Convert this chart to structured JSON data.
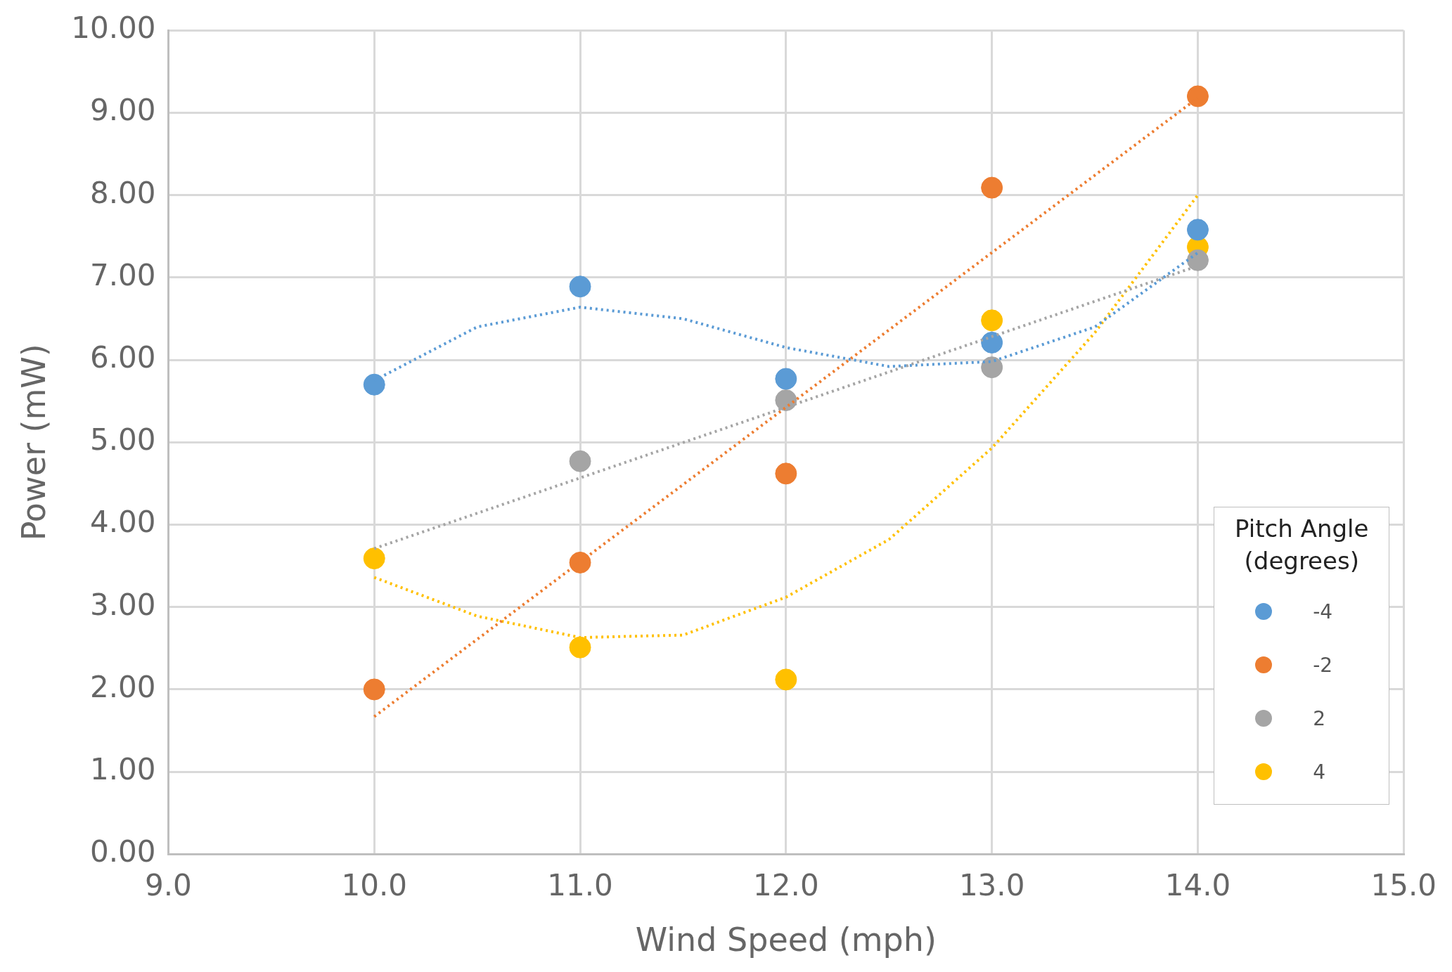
{
  "chart_data": {
    "type": "scatter",
    "xlabel": "Wind Speed (mph)",
    "ylabel": "Power (mW)",
    "legend_title": "Pitch Angle (degrees)",
    "legend": "bottom right",
    "grid": true,
    "x": [
      10,
      11,
      12,
      13,
      14
    ],
    "xlim": [
      9,
      15
    ],
    "xticks": [
      {
        "value": 9,
        "label": "9.0"
      },
      {
        "value": 10,
        "label": "10.0"
      },
      {
        "value": 11,
        "label": "11.0"
      },
      {
        "value": 12,
        "label": "12.0"
      },
      {
        "value": 13,
        "label": "13.0"
      },
      {
        "value": 14,
        "label": "14.0"
      },
      {
        "value": 15,
        "label": "15.0"
      }
    ],
    "ylim": [
      0,
      10
    ],
    "yticks": [
      {
        "value": 0,
        "label": "0.00"
      },
      {
        "value": 1,
        "label": "1.00"
      },
      {
        "value": 2,
        "label": "2.00"
      },
      {
        "value": 3,
        "label": "3.00"
      },
      {
        "value": 4,
        "label": "4.00"
      },
      {
        "value": 5,
        "label": "5.00"
      },
      {
        "value": 6,
        "label": "6.00"
      },
      {
        "value": 7,
        "label": "7.00"
      },
      {
        "value": 8,
        "label": "8.00"
      },
      {
        "value": 9,
        "label": "9.00"
      },
      {
        "value": 10,
        "label": "10.00"
      }
    ],
    "series": [
      {
        "type": "line",
        "color": "#5b9bd5",
        "line_style": "dotted",
        "marker": "none",
        "x": [
          10,
          10.5,
          11,
          11.5,
          12,
          12.5,
          13,
          13.5,
          14
        ],
        "values": [
          5.75,
          6.4,
          6.64,
          6.5,
          6.15,
          5.92,
          5.98,
          6.4,
          7.3
        ]
      },
      {
        "type": "line",
        "color": "#ed7d31",
        "line_style": "dotted",
        "marker": "none",
        "x": [
          10,
          14
        ],
        "values": [
          1.67,
          9.18
        ]
      },
      {
        "type": "line",
        "color": "#a5a5a5",
        "line_style": "dotted",
        "marker": "none",
        "x": [
          10,
          14
        ],
        "values": [
          3.71,
          7.14
        ]
      },
      {
        "type": "line",
        "color": "#ffc000",
        "line_style": "dotted",
        "marker": "none",
        "x": [
          10,
          10.5,
          11,
          11.5,
          12,
          12.5,
          13,
          13.5,
          14
        ],
        "values": [
          3.36,
          2.89,
          2.63,
          2.66,
          3.12,
          3.82,
          4.93,
          6.33,
          8.0
        ]
      },
      {
        "name": "-4",
        "color": "#5b9bd5",
        "marker": "circle",
        "values": [
          5.7,
          6.89,
          5.77,
          6.21,
          7.58
        ]
      },
      {
        "name": "-2",
        "color": "#ed7d31",
        "marker": "circle",
        "values": [
          2.0,
          3.54,
          4.62,
          8.09,
          9.2
        ]
      },
      {
        "name": "2",
        "color": "#a5a5a5",
        "marker": "circle",
        "values": [
          null,
          4.77,
          5.51,
          5.91,
          7.21
        ]
      },
      {
        "name": "4",
        "color": "#ffc000",
        "marker": "circle",
        "values": [
          3.59,
          2.51,
          2.12,
          6.48,
          7.37
        ]
      }
    ]
  }
}
